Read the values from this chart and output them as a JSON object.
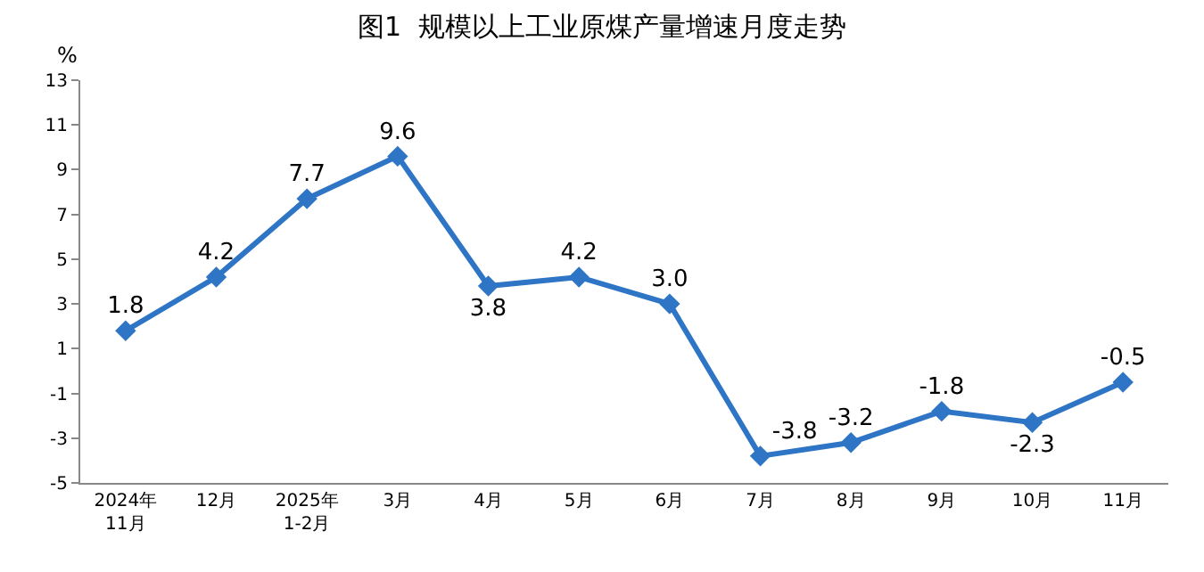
{
  "chart_data": {
    "type": "line",
    "title": "图1  规模以上工业原煤产量增速月度走势",
    "ylabel": "%",
    "categories": [
      "2024年\n11月",
      "12月",
      "2025年\n1-2月",
      "3月",
      "4月",
      "5月",
      "6月",
      "7月",
      "8月",
      "9月",
      "10月",
      "11月"
    ],
    "series": [
      {
        "color": "#2e75c6",
        "values": [
          1.8,
          4.2,
          7.7,
          9.6,
          3.8,
          4.2,
          3.0,
          -3.8,
          -3.2,
          -1.8,
          -2.3,
          -0.5
        ],
        "value_labels": [
          "1.8",
          "4.2",
          "7.7",
          "9.6",
          "3.8",
          "4.2",
          "3.0",
          "-3.8",
          "-3.2",
          "-1.8",
          "-2.3",
          "-0.5"
        ]
      }
    ],
    "ylim": [
      -5,
      13
    ],
    "yticks": [
      -5,
      -3,
      -1,
      1,
      3,
      5,
      7,
      9,
      11,
      13
    ],
    "marker": "diamond",
    "line_style": "solid"
  }
}
